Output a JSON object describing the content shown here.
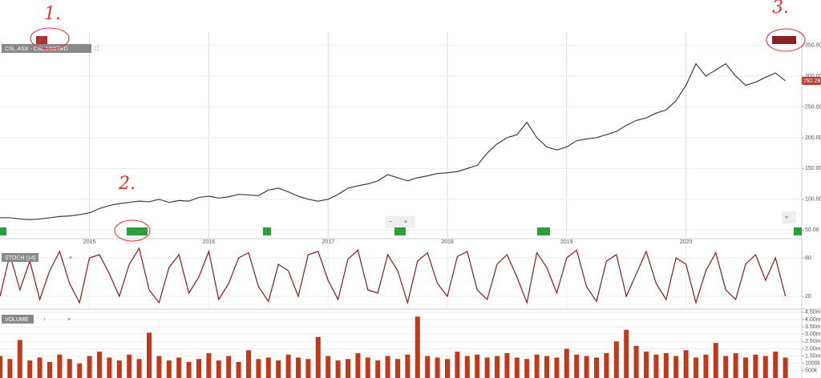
{
  "chart_data": [
    {
      "type": "line",
      "title": "CSL.ASX - CSL LIMITED",
      "color": "#3d3d3d",
      "annotations": [
        "1.",
        "2.",
        "3."
      ],
      "categories": [
        null,
        null,
        null,
        null,
        null,
        null,
        null,
        null,
        null,
        "2015",
        null,
        null,
        null,
        null,
        null,
        null,
        null,
        null,
        null,
        null,
        null,
        "2016",
        null,
        null,
        null,
        null,
        null,
        null,
        null,
        null,
        null,
        null,
        null,
        "2017",
        null,
        null,
        null,
        null,
        null,
        null,
        null,
        null,
        null,
        null,
        null,
        "2018",
        null,
        null,
        null,
        null,
        null,
        null,
        null,
        null,
        null,
        null,
        null,
        "2019",
        null,
        null,
        null,
        null,
        null,
        null,
        null,
        null,
        null,
        null,
        null,
        "2020",
        null,
        null,
        null,
        null,
        null,
        null,
        null,
        null,
        null,
        null
      ],
      "values": [
        70,
        70,
        68,
        67,
        68,
        70,
        72,
        73,
        75,
        78,
        85,
        90,
        93,
        95,
        97,
        96,
        100,
        95,
        98,
        97,
        103,
        105,
        102,
        104,
        108,
        107,
        106,
        115,
        118,
        112,
        105,
        100,
        97,
        100,
        108,
        118,
        122,
        125,
        130,
        140,
        135,
        130,
        135,
        138,
        142,
        143,
        145,
        150,
        155,
        175,
        190,
        200,
        205,
        225,
        200,
        185,
        180,
        185,
        195,
        198,
        200,
        205,
        210,
        220,
        228,
        232,
        240,
        245,
        260,
        285,
        320,
        300,
        310,
        320,
        300,
        285,
        290,
        298,
        305,
        292.28
      ],
      "ylim": [
        40,
        365
      ],
      "yticks": [
        {
          "value": 50,
          "label": "50.00"
        },
        {
          "value": 100,
          "label": "100.00"
        },
        {
          "value": 150,
          "label": "150.00"
        },
        {
          "value": 200,
          "label": "200.00"
        },
        {
          "value": 250,
          "label": "250.00"
        },
        {
          "value": 300,
          "label": "300.00"
        },
        {
          "value": 350,
          "label": "350.00"
        }
      ],
      "grid": true
    },
    {
      "type": "line",
      "title": "STOCH (14)",
      "color": "#8b1a1a",
      "values": [
        20,
        85,
        30,
        75,
        15,
        60,
        90,
        40,
        10,
        80,
        85,
        55,
        20,
        70,
        95,
        30,
        10,
        65,
        85,
        25,
        50,
        90,
        15,
        40,
        80,
        88,
        35,
        12,
        70,
        60,
        20,
        85,
        90,
        45,
        15,
        78,
        92,
        30,
        25,
        85,
        60,
        10,
        75,
        88,
        40,
        20,
        82,
        90,
        30,
        15,
        70,
        85,
        50,
        10,
        88,
        65,
        25,
        80,
        92,
        35,
        12,
        75,
        85,
        20,
        55,
        90,
        40,
        15,
        80,
        70,
        10,
        60,
        88,
        30,
        15,
        70,
        85,
        45,
        80,
        20
      ],
      "ylim": [
        0,
        100
      ],
      "yticks": [
        20,
        80
      ],
      "grid": true
    },
    {
      "type": "bar",
      "title": "VOLUME",
      "color": "#c0391b",
      "values": [
        1500000,
        1300000,
        2600000,
        1200000,
        1400000,
        1100000,
        1600000,
        1300000,
        1000000,
        1500000,
        1800000,
        1400000,
        1200000,
        1600000,
        1300000,
        3100000,
        1500000,
        1200000,
        1400000,
        1100000,
        1300000,
        1700000,
        1200000,
        1500000,
        1100000,
        1900000,
        1300000,
        1400000,
        1200000,
        1600000,
        1400000,
        1300000,
        2800000,
        1500000,
        1200000,
        1300000,
        1700000,
        1400000,
        1200000,
        1500000,
        1300000,
        1600000,
        4200000,
        1500000,
        1400000,
        1300000,
        1800000,
        1500000,
        1600000,
        1400000,
        1500000,
        1700000,
        1400000,
        1300000,
        1600000,
        1500000,
        1400000,
        2000000,
        1600000,
        1500000,
        1400000,
        1700000,
        2500000,
        3300000,
        2200000,
        1800000,
        1600000,
        1700000,
        1500000,
        1900000,
        1400000,
        1600000,
        2400000,
        1500000,
        1700000,
        1400000,
        1600000,
        1500000,
        1800000,
        1400000
      ],
      "ylim": [
        0,
        4600000
      ],
      "yticks": [
        {
          "value": 500000,
          "label": "500k"
        },
        {
          "value": 1000000,
          "label": "1000k"
        },
        {
          "value": 1500000,
          "label": "1.50m"
        },
        {
          "value": 2000000,
          "label": "2.00m"
        },
        {
          "value": 2500000,
          "label": "2.50m"
        },
        {
          "value": 3000000,
          "label": "3.00m"
        },
        {
          "value": 3500000,
          "label": "3.50m"
        },
        {
          "value": 4000000,
          "label": "4.00m"
        },
        {
          "value": 4500000,
          "label": "4.50m"
        }
      ],
      "grid": true
    }
  ]
}
